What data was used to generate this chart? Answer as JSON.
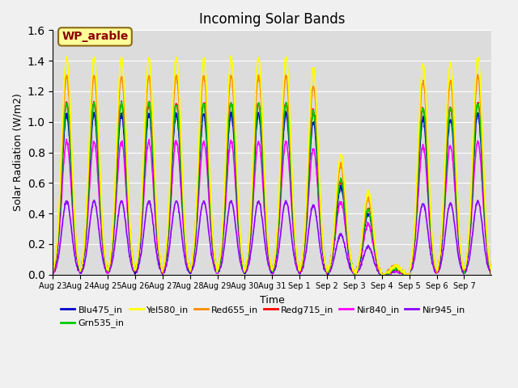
{
  "title": "Incoming Solar Bands",
  "xlabel": "Time",
  "ylabel": "Solar Radiation (W/m2)",
  "annotation": "WP_arable",
  "annotation_color": "#8B0000",
  "annotation_bg": "#FFFF99",
  "annotation_border": "#8B6914",
  "ylim": [
    0,
    1.6
  ],
  "series": {
    "Blu475_in": {
      "color": "#0000CC",
      "lw": 1.2
    },
    "Grn535_in": {
      "color": "#00CC00",
      "lw": 1.2
    },
    "Yel580_in": {
      "color": "#FFFF00",
      "lw": 1.2
    },
    "Red655_in": {
      "color": "#FF8C00",
      "lw": 1.2
    },
    "Redg715_in": {
      "color": "#FF0000",
      "lw": 1.2
    },
    "Nir840_in": {
      "color": "#FF00FF",
      "lw": 1.2
    },
    "Nir945_in": {
      "color": "#8B00FF",
      "lw": 1.2
    }
  },
  "xtick_labels": [
    "Aug 23",
    "Aug 24",
    "Aug 25",
    "Aug 26",
    "Aug 27",
    "Aug 28",
    "Aug 29",
    "Aug 30",
    "Aug 31",
    "Sep 1",
    "Sep 2",
    "Sep 3",
    "Sep 4",
    "Sep 5",
    "Sep 6",
    "Sep 7"
  ],
  "n_days": 16,
  "background_color": "#DCDCDC",
  "grid_color": "white",
  "fig_bg": "#F0F0F0",
  "cloud_days": {
    "9": 0.95,
    "10": 0.55,
    "11": 0.38,
    "12": 0.04,
    "13": 0.97,
    "14": 0.97
  },
  "peaks": {
    "Yel580_in": 1.42,
    "Red655_in": 1.3,
    "Redg715_in": 1.12,
    "Nir840_in": 0.87,
    "Blu475_in": 1.05,
    "Grn535_in": 1.12,
    "Nir945_in": 0.48
  }
}
